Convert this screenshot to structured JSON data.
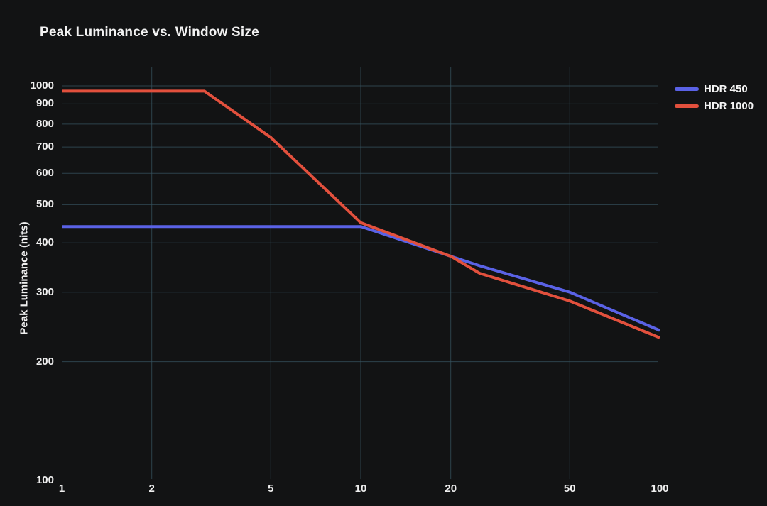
{
  "title": "Peak Luminance vs. Window Size",
  "y_axis_title": "Peak Luminance (nits)",
  "colors": {
    "background": "#121314",
    "gridline": "#36535f",
    "text": "#f2f2f2",
    "hdr450_line": "#5a62e6",
    "hdr1000_line": "#e2503d"
  },
  "legend": [
    {
      "label": "HDR 450",
      "color": "#5a62e6"
    },
    {
      "label": "HDR 1000",
      "color": "#e2503d"
    }
  ],
  "chart_data": {
    "type": "line",
    "title": "Peak Luminance vs. Window Size",
    "xlabel": "",
    "ylabel": "Peak Luminance (nits)",
    "x_scale": "log",
    "y_scale": "log",
    "xlim": [
      1,
      100
    ],
    "ylim": [
      100,
      1115
    ],
    "grid": true,
    "legend_position": "top-right-outside",
    "x": [
      1,
      2,
      3,
      5,
      10,
      20,
      25,
      50,
      100
    ],
    "x_tick_labels": [
      1,
      2,
      5,
      10,
      20,
      50,
      100
    ],
    "y_tick_labels": [
      100,
      200,
      300,
      400,
      500,
      600,
      700,
      800,
      900,
      1000
    ],
    "series": [
      {
        "name": "HDR 450",
        "color": "#5a62e6",
        "values": [
          440,
          440,
          440,
          440,
          440,
          370,
          350,
          300,
          240
        ]
      },
      {
        "name": "HDR 1000",
        "color": "#e2503d",
        "values": [
          970,
          970,
          970,
          740,
          450,
          370,
          335,
          285,
          230
        ]
      }
    ]
  }
}
